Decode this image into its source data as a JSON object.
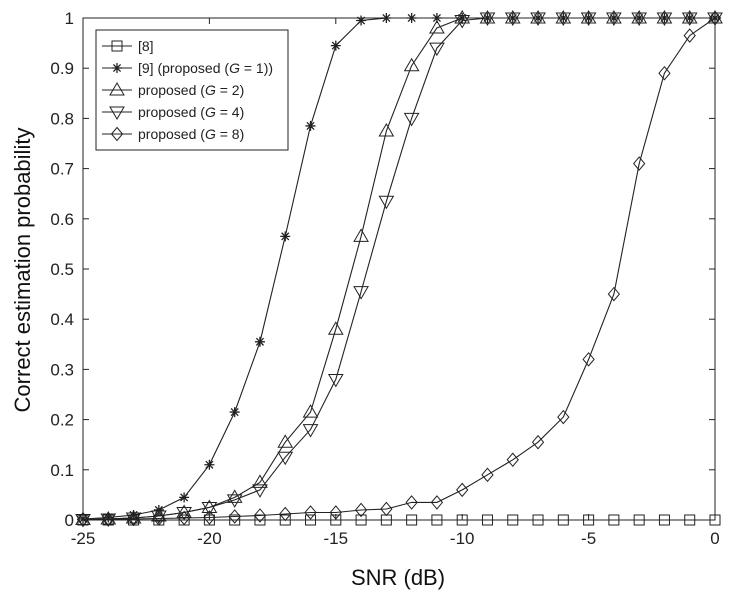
{
  "chart_data": {
    "type": "line",
    "xlabel": "SNR (dB)",
    "ylabel": "Correct estimation probability",
    "xlim": [
      -25,
      0
    ],
    "ylim": [
      0,
      1
    ],
    "xticks": [
      -25,
      -20,
      -15,
      -10,
      -5,
      0
    ],
    "yticks": [
      0,
      0.1,
      0.2,
      0.3,
      0.4,
      0.5,
      0.6,
      0.7,
      0.8,
      0.9,
      1
    ],
    "x": [
      -25,
      -24,
      -23,
      -22,
      -21,
      -20,
      -19,
      -18,
      -17,
      -16,
      -15,
      -14,
      -13,
      -12,
      -11,
      -10,
      -9,
      -8,
      -7,
      -6,
      -5,
      -4,
      -3,
      -2,
      -1,
      0
    ],
    "legend_position": "top-left",
    "series": [
      {
        "legend_parts": [
          "[8]"
        ],
        "marker": "square",
        "values": [
          0,
          0,
          0,
          0,
          0,
          0,
          0,
          0,
          0,
          0,
          0,
          0,
          0,
          0,
          0,
          0,
          0,
          0,
          0,
          0,
          0,
          0,
          0,
          0,
          0,
          0
        ]
      },
      {
        "legend_parts": [
          "[9] (proposed (",
          "G",
          " = 1))"
        ],
        "marker": "star",
        "values": [
          0.002,
          0.005,
          0.01,
          0.02,
          0.045,
          0.11,
          0.215,
          0.355,
          0.565,
          0.785,
          0.945,
          0.995,
          1,
          1,
          1,
          1,
          1,
          1,
          1,
          1,
          1,
          1,
          1,
          1,
          1,
          1
        ]
      },
      {
        "legend_parts": [
          "proposed (",
          "G",
          " = 2)"
        ],
        "marker": "triangle-up",
        "values": [
          0.001,
          0.002,
          0.004,
          0.008,
          0.015,
          0.025,
          0.045,
          0.075,
          0.155,
          0.215,
          0.38,
          0.565,
          0.775,
          0.905,
          0.98,
          1,
          1,
          1,
          1,
          1,
          1,
          1,
          1,
          1,
          1,
          1
        ]
      },
      {
        "legend_parts": [
          "proposed (",
          "G",
          " = 4)"
        ],
        "marker": "triangle-down",
        "values": [
          0.001,
          0.002,
          0.004,
          0.008,
          0.015,
          0.025,
          0.04,
          0.06,
          0.125,
          0.18,
          0.28,
          0.455,
          0.635,
          0.8,
          0.94,
          0.995,
          1,
          1,
          1,
          1,
          1,
          1,
          1,
          1,
          1,
          1
        ]
      },
      {
        "legend_parts": [
          "proposed (",
          "G",
          " = 8)"
        ],
        "marker": "diamond",
        "values": [
          0.001,
          0.001,
          0.002,
          0.003,
          0.004,
          0.005,
          0.007,
          0.009,
          0.012,
          0.015,
          0.015,
          0.02,
          0.022,
          0.035,
          0.035,
          0.06,
          0.09,
          0.12,
          0.155,
          0.205,
          0.32,
          0.45,
          0.71,
          0.89,
          0.965,
          1
        ]
      }
    ]
  }
}
